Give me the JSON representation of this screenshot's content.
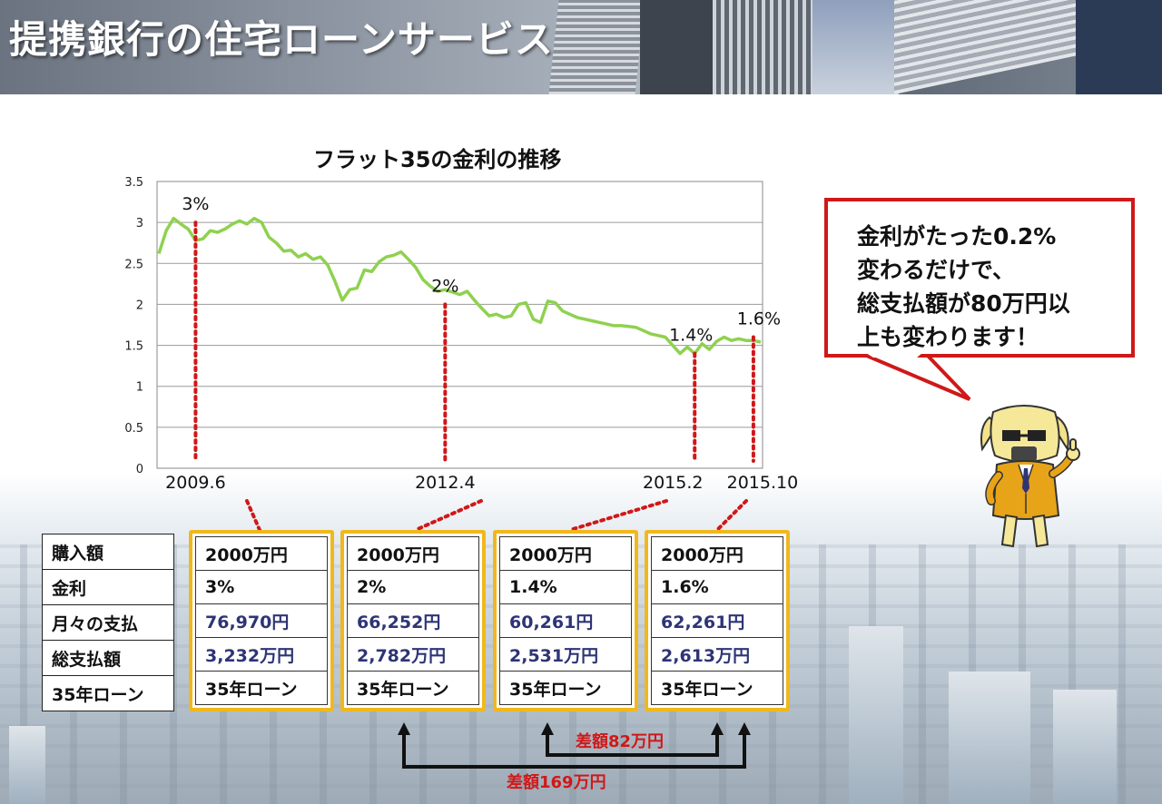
{
  "header": {
    "title": "提携銀行の住宅ローンサービス"
  },
  "chart_data": {
    "type": "line",
    "title": "フラット35の金利の推移",
    "ylim": [
      0,
      3.5
    ],
    "yticks": [
      "3.5",
      "3",
      "2.5",
      "2",
      "1.5",
      "1",
      "0.5",
      "0"
    ],
    "grid": true,
    "legend": "none",
    "line_color": "#8fd14f",
    "x_range": [
      "2009.1",
      "2015.11"
    ],
    "xlabels": [
      "2009.6",
      "2012.4",
      "2015.2",
      "2015.10"
    ],
    "x": [
      "2009.1",
      "2009.2",
      "2009.3",
      "2009.4",
      "2009.5",
      "2009.6",
      "2009.7",
      "2009.8",
      "2009.9",
      "2009.10",
      "2009.11",
      "2009.12",
      "2010.1",
      "2010.2",
      "2010.3",
      "2010.4",
      "2010.5",
      "2010.6",
      "2010.7",
      "2010.8",
      "2010.9",
      "2010.10",
      "2010.11",
      "2010.12",
      "2011.1",
      "2011.2",
      "2011.3",
      "2011.4",
      "2011.5",
      "2011.6",
      "2011.7",
      "2011.8",
      "2011.9",
      "2011.10",
      "2011.11",
      "2011.12",
      "2012.1",
      "2012.2",
      "2012.3",
      "2012.4",
      "2012.5",
      "2012.6",
      "2012.7",
      "2012.8",
      "2012.9",
      "2012.10",
      "2012.11",
      "2012.12",
      "2013.1",
      "2013.2",
      "2013.3",
      "2013.4",
      "2013.5",
      "2013.6",
      "2013.7",
      "2013.8",
      "2013.9",
      "2013.10",
      "2013.11",
      "2013.12",
      "2014.1",
      "2014.2",
      "2014.3",
      "2014.4",
      "2014.5",
      "2014.6",
      "2014.7",
      "2014.8",
      "2014.9",
      "2014.10",
      "2014.11",
      "2014.12",
      "2015.1",
      "2015.2",
      "2015.3",
      "2015.4",
      "2015.5",
      "2015.6",
      "2015.7",
      "2015.8",
      "2015.9",
      "2015.10",
      "2015.11"
    ],
    "values": [
      2.62,
      2.9,
      3.05,
      2.98,
      2.92,
      2.78,
      2.8,
      2.9,
      2.88,
      2.92,
      2.98,
      3.02,
      2.98,
      3.05,
      3.0,
      2.82,
      2.75,
      2.65,
      2.66,
      2.58,
      2.62,
      2.55,
      2.58,
      2.48,
      2.28,
      2.05,
      2.18,
      2.2,
      2.42,
      2.4,
      2.52,
      2.58,
      2.6,
      2.64,
      2.55,
      2.45,
      2.3,
      2.22,
      2.16,
      2.18,
      2.15,
      2.12,
      2.16,
      2.05,
      1.95,
      1.86,
      1.88,
      1.84,
      1.86,
      2.0,
      2.02,
      1.82,
      1.78,
      2.04,
      2.02,
      1.92,
      1.88,
      1.84,
      1.82,
      1.8,
      1.78,
      1.76,
      1.74,
      1.74,
      1.73,
      1.72,
      1.68,
      1.64,
      1.62,
      1.6,
      1.5,
      1.4,
      1.48,
      1.4,
      1.52,
      1.45,
      1.55,
      1.6,
      1.56,
      1.58,
      1.56,
      1.56,
      1.54
    ],
    "annotations": [
      {
        "label": "3%",
        "x": "2009.6",
        "value": 3.0
      },
      {
        "label": "2%",
        "x": "2012.4",
        "value": 2.0
      },
      {
        "label": "1.4%",
        "x": "2015.2",
        "value": 1.4
      },
      {
        "label": "1.6%",
        "x": "2015.10",
        "value": 1.6
      }
    ]
  },
  "table": {
    "row_labels": [
      "購入額",
      "金利",
      "月々の支払",
      "総支払額",
      "35年ローン"
    ],
    "columns": [
      {
        "date": "2009.6",
        "cells": [
          "2000万円",
          "3%",
          "76,970円",
          "3,232万円",
          "35年ローン"
        ]
      },
      {
        "date": "2012.4",
        "cells": [
          "2000万円",
          "2%",
          "66,252円",
          "2,782万円",
          "35年ローン"
        ]
      },
      {
        "date": "2015.2",
        "cells": [
          "2000万円",
          "1.4%",
          "60,261円",
          "2,531万円",
          "35年ローン"
        ]
      },
      {
        "date": "2015.10",
        "cells": [
          "2000万円",
          "1.6%",
          "62,261円",
          "2,613万円",
          "35年ローン"
        ]
      }
    ],
    "highlight_color": "#f0b81e"
  },
  "comparisons": [
    {
      "label": "差額82万円",
      "from": "2015.2",
      "to": "2015.10"
    },
    {
      "label": "差額169万円",
      "from": "2012.4",
      "to": "2015.10"
    }
  ],
  "bubble": {
    "lines": [
      "金利がたった0.2%",
      "変わるだけで、",
      "総支払額が80万円以",
      "上も変わります！"
    ],
    "border_color": "#d01818"
  },
  "accent_red": "#d01818",
  "mascot": "dog-mascot-in-suit-thumbs-up"
}
